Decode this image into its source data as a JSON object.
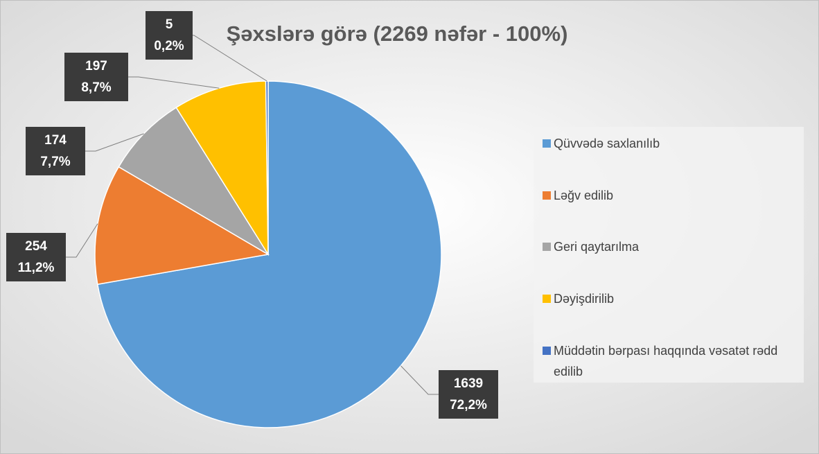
{
  "chart_data": {
    "type": "pie",
    "title": "Şəxslərə görə (2269 nəfər - 100%)",
    "categories": [
      "Qüvvədə saxlanılıb",
      "Ləğv edilib",
      "Geri qaytarılma",
      "Dəyişdirilib",
      "Müddətin bərpası haqqında vəsatət rədd edilib"
    ],
    "values": [
      1639,
      254,
      174,
      197,
      5
    ],
    "percent_labels": [
      "72,2%",
      "11,2%",
      "7,7%",
      "8,7%",
      "0,2%"
    ],
    "colors": [
      "#5b9bd5",
      "#ed7d31",
      "#a5a5a5",
      "#ffc000",
      "#4472c4"
    ],
    "legend": "right"
  }
}
